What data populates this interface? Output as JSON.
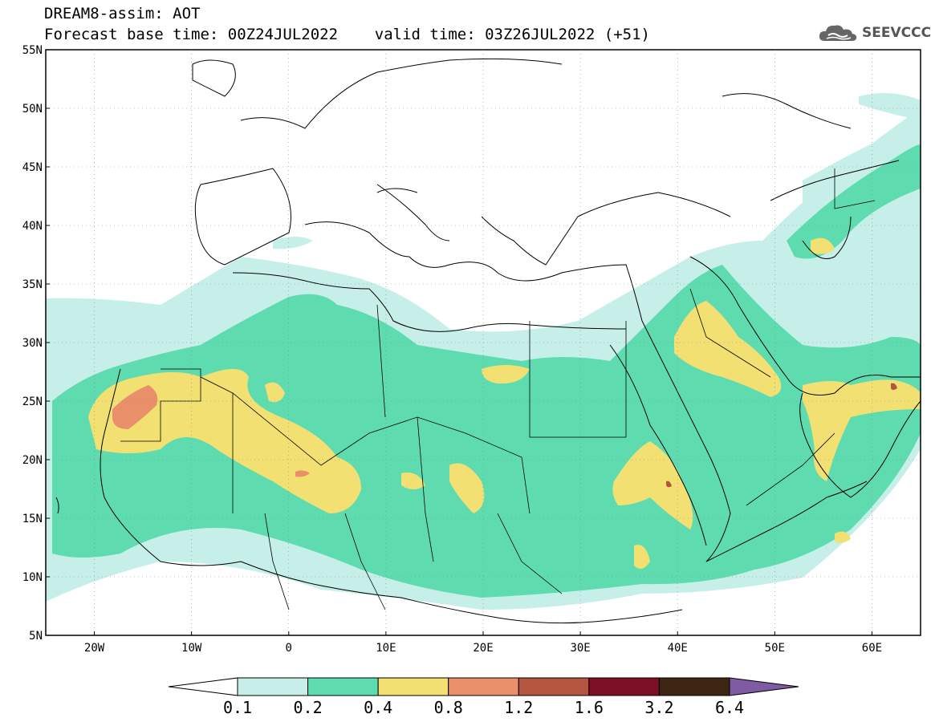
{
  "title": {
    "line1": "DREAM8-assim: AOT",
    "line2": "Forecast base time: 00Z24JUL2022    valid time: 03Z26JUL2022 (+51)"
  },
  "logo": {
    "text": "SEEVCCC",
    "icon": "cloud-icon"
  },
  "axes": {
    "lat_labels": [
      "55N",
      "50N",
      "45N",
      "40N",
      "35N",
      "30N",
      "25N",
      "20N",
      "15N",
      "10N",
      "5N"
    ],
    "lon_labels": [
      "20W",
      "10W",
      "0",
      "10E",
      "20E",
      "30E",
      "40E",
      "50E",
      "60E"
    ]
  },
  "colorbar": {
    "labels": [
      "0.1",
      "0.2",
      "0.4",
      "0.8",
      "1.2",
      "1.6",
      "3.2",
      "6.4"
    ],
    "colors": [
      "#ffffff",
      "#c7efe9",
      "#5fdbb0",
      "#f2e172",
      "#e9906a",
      "#b5543f",
      "#7d0f27",
      "#3d2614",
      "#7e5ba3"
    ]
  }
}
